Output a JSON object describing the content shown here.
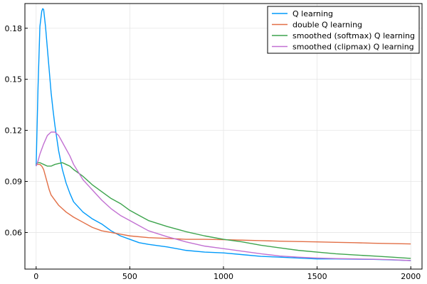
{
  "chart_data": {
    "type": "line",
    "title": "",
    "xlabel": "",
    "ylabel": "",
    "xlim": [
      -60,
      2060
    ],
    "ylim": [
      0.0385,
      0.1945
    ],
    "x_ticks": [
      0,
      500,
      1000,
      1500,
      2000
    ],
    "x_tick_labels": [
      "0",
      "500",
      "1000",
      "1500",
      "2000"
    ],
    "y_ticks": [
      0.06,
      0.09,
      0.12,
      0.15,
      0.18
    ],
    "y_tick_labels": [
      "0.06",
      "0.09",
      "0.12",
      "0.15",
      "0.18"
    ],
    "grid": true,
    "legend_position": "top-right",
    "series": [
      {
        "name": "Q learning",
        "color": "#009AFA",
        "x": [
          0,
          10,
          20,
          30,
          35,
          40,
          50,
          60,
          70,
          80,
          90,
          100,
          120,
          140,
          160,
          180,
          200,
          250,
          300,
          350,
          400,
          450,
          500,
          550,
          600,
          700,
          800,
          900,
          1000,
          1100,
          1200,
          1300,
          1400,
          1500,
          1600,
          1700,
          1800,
          1900,
          2000
        ],
        "y": [
          0.099,
          0.145,
          0.181,
          0.19,
          0.1915,
          0.191,
          0.181,
          0.168,
          0.155,
          0.142,
          0.132,
          0.123,
          0.108,
          0.097,
          0.089,
          0.083,
          0.078,
          0.072,
          0.068,
          0.065,
          0.061,
          0.058,
          0.056,
          0.054,
          0.053,
          0.0515,
          0.0495,
          0.0485,
          0.048,
          0.047,
          0.046,
          0.0455,
          0.045,
          0.0445,
          0.0445,
          0.0443,
          0.0442,
          0.0439,
          0.0435
        ]
      },
      {
        "name": "double Q learning",
        "color": "#E26F46",
        "x": [
          0,
          10,
          20,
          30,
          40,
          50,
          60,
          70,
          80,
          100,
          120,
          140,
          160,
          200,
          250,
          300,
          350,
          400,
          450,
          500,
          600,
          700,
          800,
          900,
          1000,
          1100,
          1200,
          1300,
          1400,
          1500,
          1600,
          1700,
          1800,
          1900,
          2000
        ],
        "y": [
          0.1,
          0.1,
          0.1,
          0.099,
          0.097,
          0.093,
          0.089,
          0.085,
          0.082,
          0.079,
          0.076,
          0.074,
          0.072,
          0.069,
          0.066,
          0.063,
          0.061,
          0.06,
          0.059,
          0.058,
          0.057,
          0.0565,
          0.056,
          0.056,
          0.0558,
          0.0555,
          0.0552,
          0.0549,
          0.0547,
          0.0545,
          0.0542,
          0.054,
          0.0537,
          0.0535,
          0.0533
        ]
      },
      {
        "name": "smoothed (softmax) Q learning",
        "color": "#3DA44D",
        "x": [
          0,
          10,
          20,
          30,
          40,
          60,
          80,
          100,
          120,
          140,
          160,
          180,
          200,
          250,
          300,
          350,
          400,
          450,
          500,
          550,
          600,
          700,
          800,
          900,
          1000,
          1100,
          1200,
          1300,
          1400,
          1500,
          1600,
          1700,
          1800,
          1900,
          2000
        ],
        "y": [
          0.1,
          0.101,
          0.101,
          0.1005,
          0.1,
          0.099,
          0.099,
          0.1,
          0.1005,
          0.101,
          0.1,
          0.099,
          0.097,
          0.093,
          0.088,
          0.084,
          0.08,
          0.077,
          0.073,
          0.07,
          0.067,
          0.0635,
          0.0605,
          0.058,
          0.056,
          0.0545,
          0.0525,
          0.051,
          0.0495,
          0.0485,
          0.0475,
          0.0468,
          0.0462,
          0.0455,
          0.0448
        ]
      },
      {
        "name": "smoothed (clipmax) Q learning",
        "color": "#C271D2",
        "x": [
          0,
          10,
          20,
          40,
          60,
          80,
          100,
          120,
          140,
          160,
          180,
          200,
          250,
          300,
          350,
          400,
          450,
          500,
          550,
          600,
          700,
          800,
          900,
          1000,
          1100,
          1200,
          1300,
          1400,
          1500,
          1600,
          1700,
          1800,
          1900,
          2000
        ],
        "y": [
          0.099,
          0.102,
          0.106,
          0.112,
          0.117,
          0.119,
          0.119,
          0.117,
          0.113,
          0.109,
          0.105,
          0.1,
          0.091,
          0.085,
          0.079,
          0.074,
          0.07,
          0.067,
          0.064,
          0.061,
          0.0575,
          0.0545,
          0.052,
          0.0505,
          0.049,
          0.0475,
          0.0462,
          0.0455,
          0.045,
          0.0447,
          0.0445,
          0.0443,
          0.044,
          0.0435
        ]
      }
    ]
  }
}
